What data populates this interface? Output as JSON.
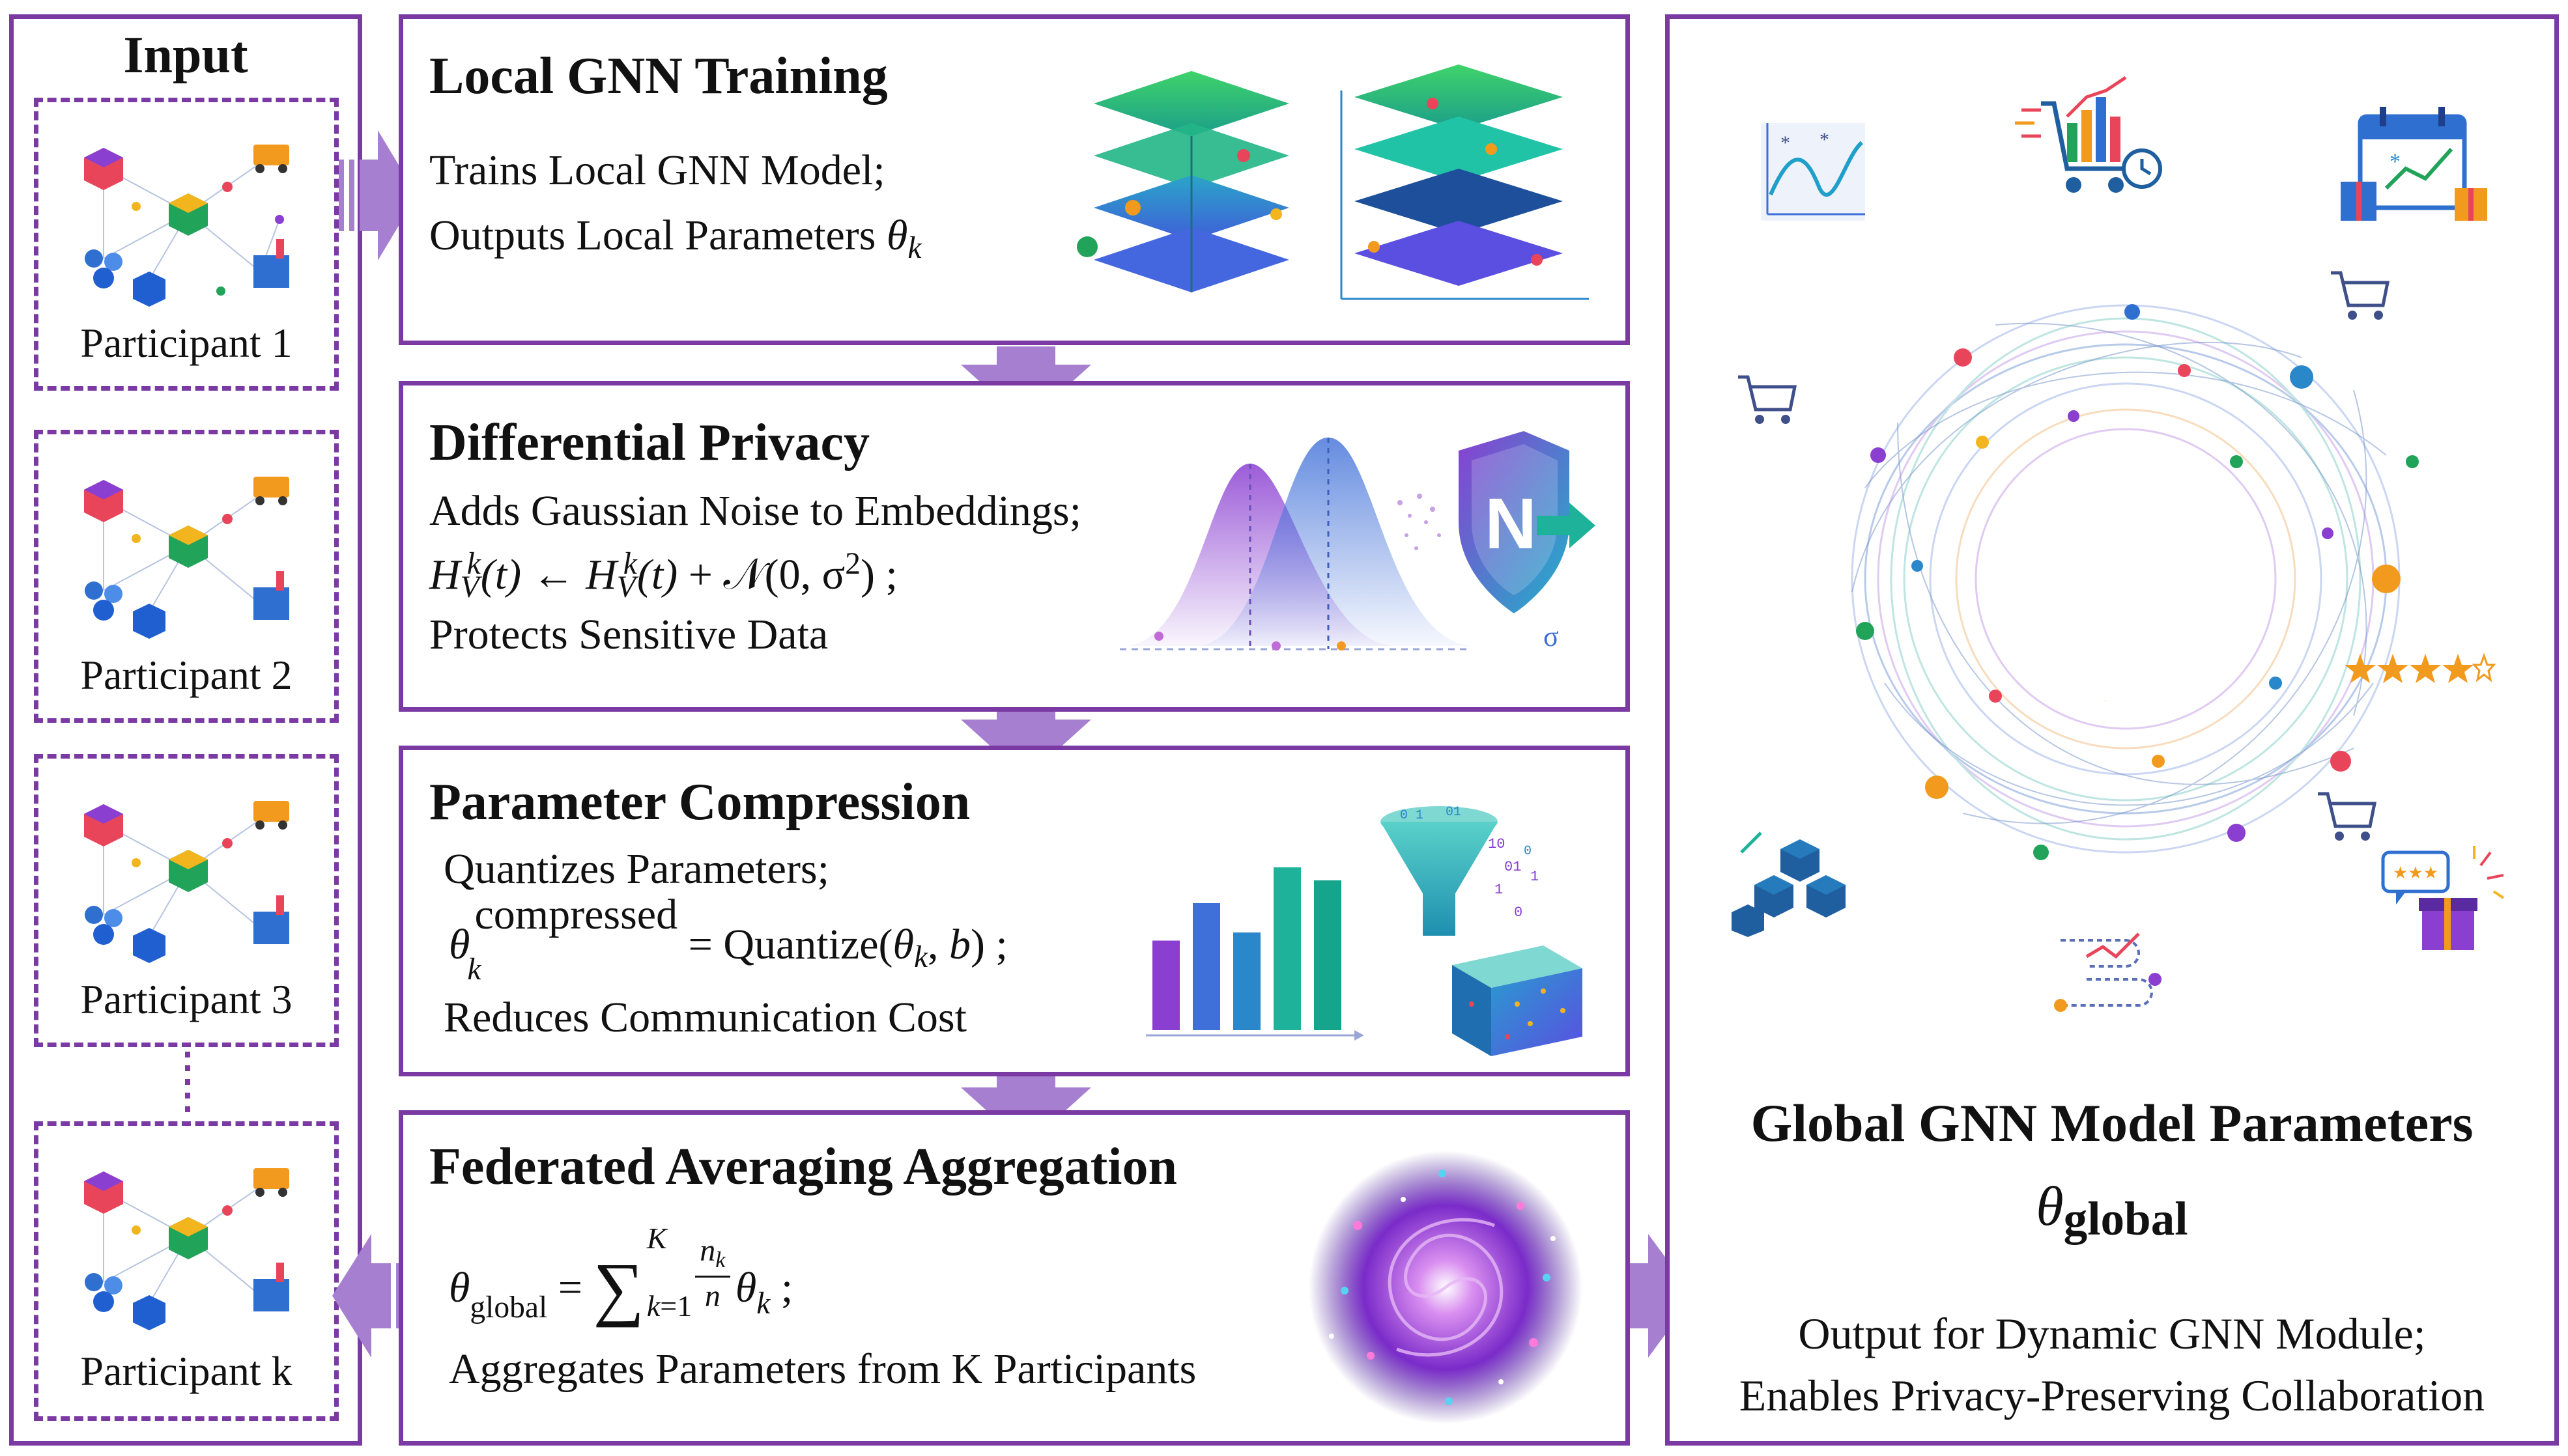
{
  "input": {
    "title": "Input",
    "participants": [
      "Participant 1",
      "Participant 2",
      "Participant 3",
      "Participant k"
    ]
  },
  "stages": {
    "local": {
      "title": "Local GNN Training",
      "line1": "Trains Local GNN Model;",
      "line2_text": "Outputs Local Parameters",
      "line2_sym": "θ",
      "line2_sub": "k"
    },
    "privacy": {
      "title": "Differential Privacy",
      "line1": "Adds Gaussian Noise to Embeddings;",
      "formula": "H_V^k(t) ← H_V^k(t) + 𝒩(0, σ²) ;",
      "line3": "Protects Sensitive Data",
      "shield_letter": "N",
      "sigma_mark": "σ"
    },
    "compression": {
      "title": "Parameter Compression",
      "line1": "Quantizes Parameters;",
      "formula_sup": "compressed",
      "formula_rest": "= Quantize(θ_k, b) ;",
      "line3": "Reduces Communication Cost",
      "bars": [
        0.55,
        0.78,
        0.6,
        1.0,
        0.92
      ],
      "bar_colors": [
        "#8a3fd1",
        "#3f6fd8",
        "#2a87c9",
        "#1fb29a",
        "#15a58c"
      ]
    },
    "aggregation": {
      "title": "Federated Averaging Aggregation",
      "formula": "θ_global = Σ_{k=1}^{K} (n_k / n) θ_k ;",
      "line2": "Aggregates Parameters from K Participants"
    }
  },
  "global": {
    "title": "Global GNN Model Parameters",
    "symbol": "θ",
    "symbol_sub": "global",
    "line1": "Output for Dynamic GNN Module;",
    "line2": "Enables Privacy-Preserving Collaboration"
  },
  "colors": {
    "border": "#7b3aa3",
    "arrow": "#a77fd1",
    "arrow_dark": "#9368c6"
  }
}
